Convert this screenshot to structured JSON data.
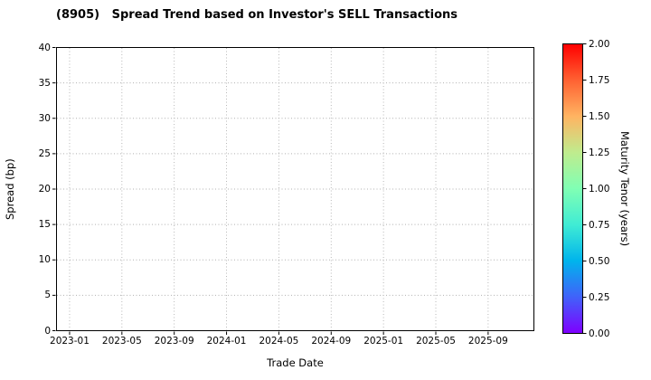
{
  "chart_data": {
    "type": "scatter",
    "title": "(8905)   Spread Trend based on Investor's SELL Transactions",
    "xlabel": "Trade Date",
    "ylabel": "Spread (bp)",
    "ylim": [
      0,
      40
    ],
    "yticks": [
      0,
      5,
      10,
      15,
      20,
      25,
      30,
      35,
      40
    ],
    "xlim_months": [
      0,
      36.5
    ],
    "xticks": [
      {
        "label": "2023-01",
        "month": 1
      },
      {
        "label": "2023-05",
        "month": 5
      },
      {
        "label": "2023-09",
        "month": 9
      },
      {
        "label": "2024-01",
        "month": 13
      },
      {
        "label": "2024-05",
        "month": 17
      },
      {
        "label": "2024-09",
        "month": 21
      },
      {
        "label": "2025-01",
        "month": 25
      },
      {
        "label": "2025-05",
        "month": 29
      },
      {
        "label": "2025-09",
        "month": 33
      }
    ],
    "points": [],
    "grid": true,
    "legend": "none",
    "colorbar": {
      "label": "Maturity Tenor (years)",
      "min": 0,
      "max": 2,
      "ticks": [
        "0.00",
        "0.25",
        "0.50",
        "0.75",
        "1.00",
        "1.25",
        "1.50",
        "1.75",
        "2.00"
      ],
      "colormap": "rainbow",
      "gradient_bottom_to_top": [
        "#7f00ff",
        "#4062fa",
        "#00b4ec",
        "#40ecd4",
        "#80ffb4",
        "#bfec8e",
        "#ffb462",
        "#ff6232",
        "#ff0000"
      ]
    }
  },
  "colors": {
    "grid": "#b0b0b0",
    "axis": "#000000",
    "text": "#000000",
    "background": "#ffffff"
  }
}
